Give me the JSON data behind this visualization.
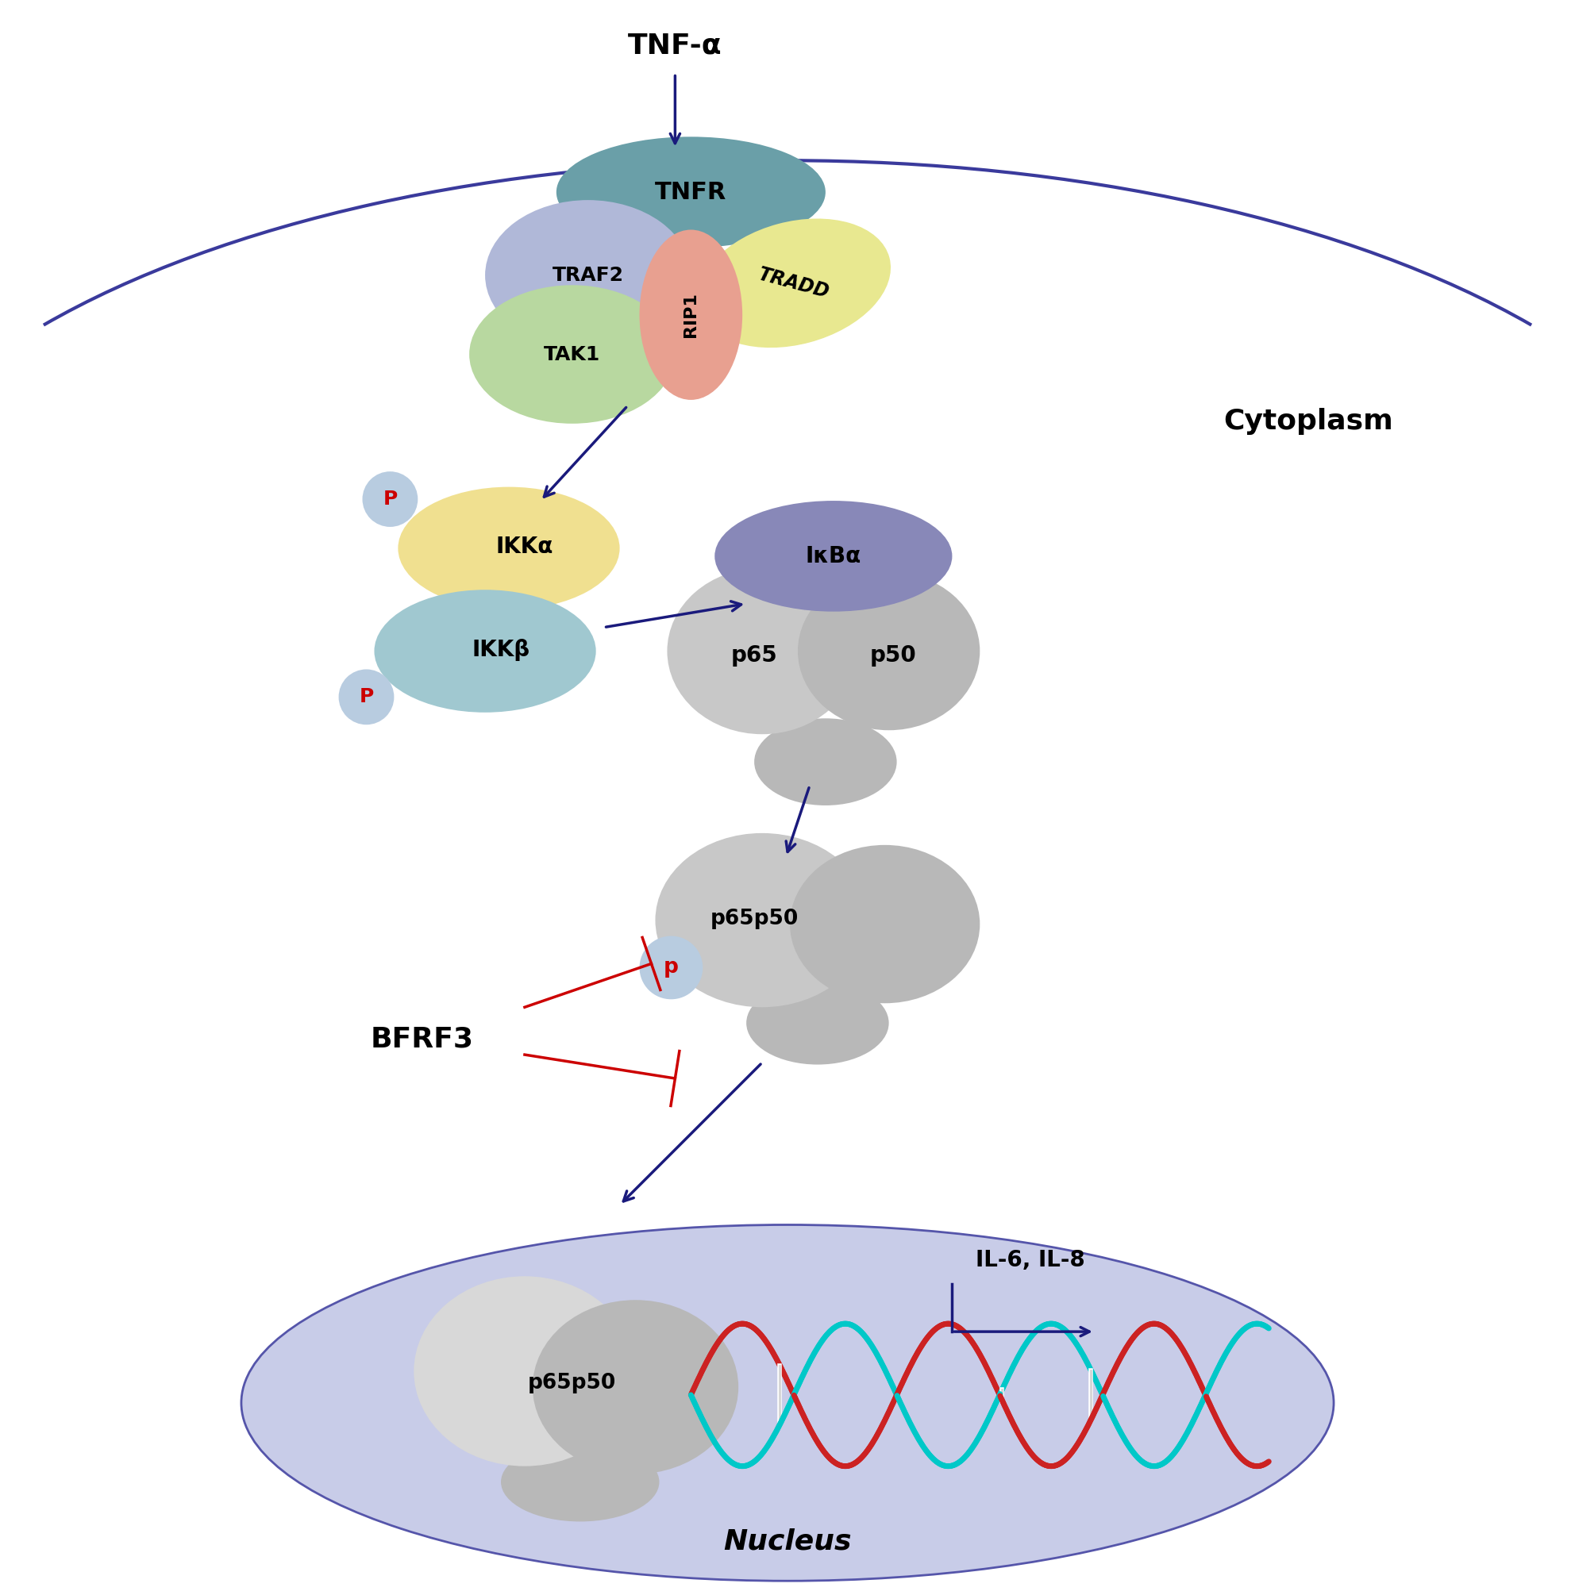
{
  "fig_width": 19.84,
  "fig_height": 20.1,
  "bg_color": "#ffffff",
  "cell_arc_color": "#3a3a9c",
  "nucleus_color": "#c8cce8",
  "nucleus_border": "#5555aa",
  "arrow_color": "#1a1a7c",
  "inhibit_color": "#cc0000",
  "tnf_alpha_label": "TNF-α",
  "cytoplasm_label": "Cytoplasm",
  "nucleus_label": "Nucleus",
  "bfrf3_label": "BFRF3",
  "il_label": "IL-6, IL-8",
  "tnfr_color": "#6a9fa8",
  "tnfr_label": "TNFR",
  "traf2_color": "#b0b8d8",
  "traf2_label": "TRAF2",
  "tak1_color": "#b8d8a0",
  "tak1_label": "TAK1",
  "rip1_color": "#e8a090",
  "rip1_label": "RIP1",
  "tradd_color": "#e8e890",
  "tradd_label": "TRADD",
  "ikka_color": "#f0e090",
  "ikka_label": "IKKα",
  "ikkb_color": "#a0c8d0",
  "ikkb_label": "IKKβ",
  "ikba_color": "#8888b8",
  "ikba_label": "IκBα",
  "p65_color": "#c8c8c8",
  "p50_color": "#b8b8b8",
  "p_circle_color": "#b8cce0",
  "p_text_color": "#cc0000",
  "dna_cyan": "#00c8c8",
  "dna_red": "#cc2222"
}
